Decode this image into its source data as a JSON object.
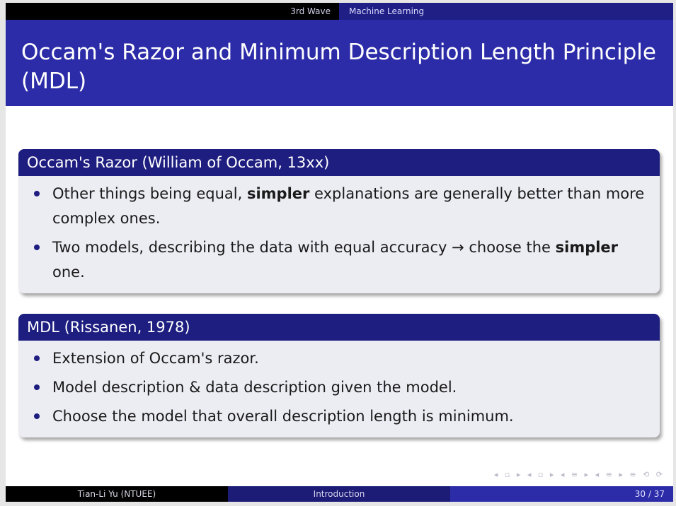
{
  "nav": {
    "section": "3rd Wave",
    "subsection": "Machine Learning"
  },
  "title": "Occam's Razor and Minimum Description Length Principle (MDL)",
  "blocks": [
    {
      "title": "Occam's Razor (William of Occam, 13xx)",
      "items": [
        {
          "before": "Other things being equal, ",
          "bold": "simpler",
          "after": " explanations are generally better than more complex ones."
        },
        {
          "before": "Two models, describing the data with equal accuracy → choose the ",
          "bold": "simpler",
          "after": " one."
        }
      ]
    },
    {
      "title": "MDL (Rissanen, 1978)",
      "items": [
        {
          "text": "Extension of Occam's razor."
        },
        {
          "text": "Model description & data description given the model."
        },
        {
          "text": "Choose the model that overall description length is minimum."
        }
      ]
    }
  ],
  "nav_symbols": "◂ ▫ ▸ ◂ ▫ ▸ ◂ ≡ ▸ ◂ ≡ ▸   ≡   ⟲ ⟳",
  "footer": {
    "author": "Tian-Li Yu (NTUEE)",
    "topic": "Introduction",
    "page": "30 / 37"
  }
}
